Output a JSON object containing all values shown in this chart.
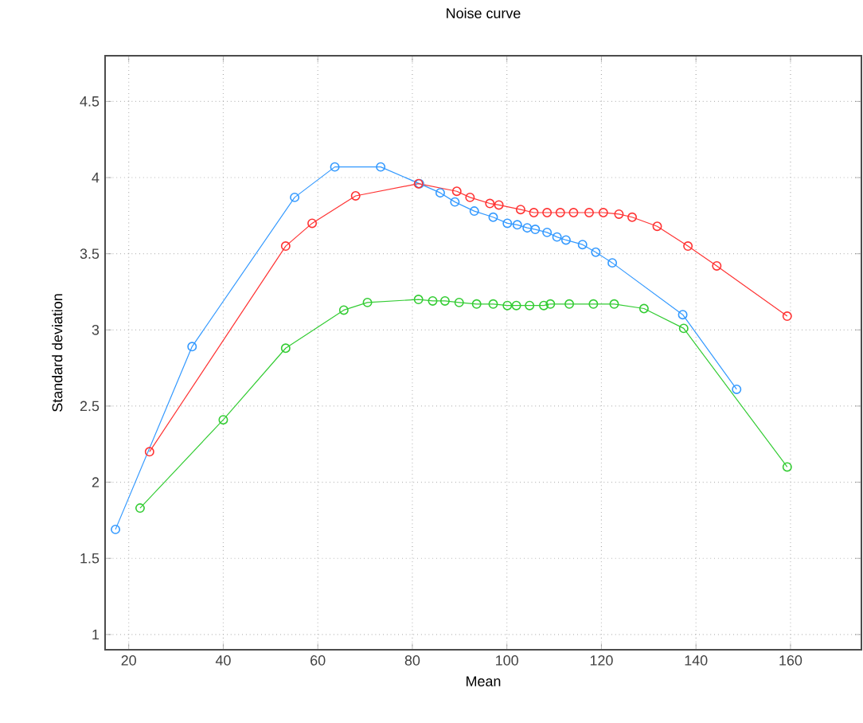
{
  "chart_data": {
    "type": "line",
    "title": "Noise curve",
    "xlabel": "Mean",
    "ylabel": "Standard deviation",
    "xlim": [
      15,
      175
    ],
    "ylim": [
      0.9,
      4.8
    ],
    "xticks": [
      20,
      40,
      60,
      80,
      100,
      120,
      140,
      160
    ],
    "yticks": [
      1,
      1.5,
      2,
      2.5,
      3,
      3.5,
      4,
      4.5
    ],
    "grid": true,
    "marker": "circle",
    "line_style": "solid",
    "series": [
      {
        "color": "#3399ff",
        "x": [
          17.2,
          33.4,
          55.1,
          63.6,
          73.3,
          81.5,
          85.9,
          89.0,
          93.1,
          97.1,
          100.1,
          102.2,
          104.3,
          106.0,
          108.5,
          110.6,
          112.5,
          116.0,
          118.8,
          122.3,
          137.2,
          148.6
        ],
        "values": [
          1.69,
          2.89,
          3.87,
          4.07,
          4.07,
          3.96,
          3.9,
          3.84,
          3.78,
          3.74,
          3.7,
          3.69,
          3.67,
          3.66,
          3.64,
          3.61,
          3.59,
          3.56,
          3.51,
          3.44,
          3.1,
          2.61
        ]
      },
      {
        "color": "#ff3333",
        "x": [
          24.4,
          53.2,
          58.8,
          68.0,
          81.3,
          89.4,
          92.2,
          96.4,
          98.3,
          102.9,
          105.7,
          108.5,
          111.3,
          114.1,
          117.4,
          120.4,
          123.7,
          126.5,
          131.8,
          138.3,
          144.4,
          159.3
        ],
        "values": [
          2.2,
          3.55,
          3.7,
          3.88,
          3.96,
          3.91,
          3.87,
          3.83,
          3.82,
          3.79,
          3.77,
          3.77,
          3.77,
          3.77,
          3.77,
          3.77,
          3.76,
          3.74,
          3.68,
          3.55,
          3.42,
          3.09
        ]
      },
      {
        "color": "#33cc33",
        "x": [
          22.4,
          40.0,
          53.2,
          65.5,
          70.5,
          81.3,
          84.3,
          86.9,
          89.9,
          93.6,
          97.1,
          100.1,
          102.0,
          104.8,
          107.8,
          109.2,
          113.2,
          118.3,
          122.7,
          129.0,
          137.4,
          159.3
        ],
        "values": [
          1.83,
          2.41,
          2.88,
          3.13,
          3.18,
          3.2,
          3.19,
          3.19,
          3.18,
          3.17,
          3.17,
          3.16,
          3.16,
          3.16,
          3.16,
          3.17,
          3.17,
          3.17,
          3.17,
          3.14,
          3.01,
          2.1
        ]
      }
    ]
  }
}
